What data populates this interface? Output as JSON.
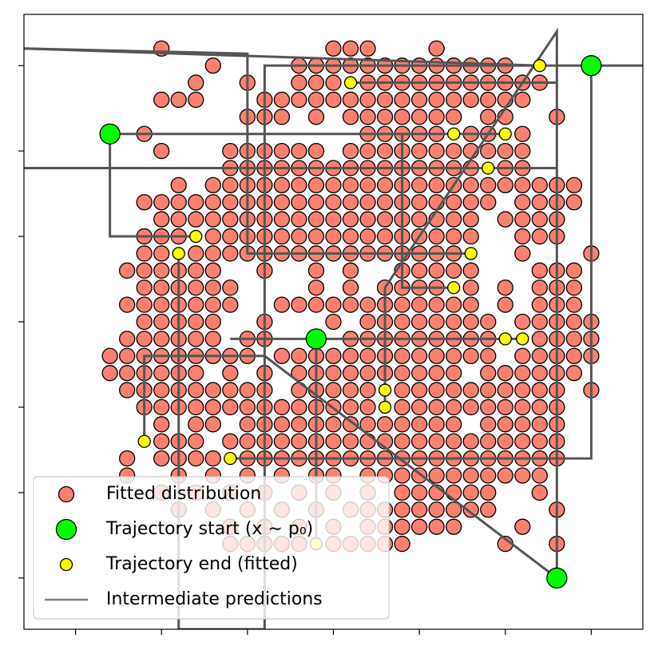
{
  "chart_data": {
    "type": "scatter",
    "xlim": [
      -18,
      18
    ],
    "ylim": [
      -18,
      18
    ],
    "xticks": [
      -15,
      -10,
      -5,
      0,
      5,
      10,
      15
    ],
    "yticks": [
      -15,
      -10,
      -5,
      0,
      5,
      10,
      15
    ],
    "legend": "lower left",
    "series": [
      {
        "name": "Fitted distribution",
        "color": "#fa8072",
        "x": [
          -10,
          0,
          1,
          2,
          6,
          -7,
          -2,
          -1,
          0,
          1,
          2,
          3,
          4,
          5,
          6,
          7,
          8,
          9,
          10,
          -8,
          -5,
          -2,
          -1,
          0,
          2,
          3,
          4,
          5,
          6,
          7,
          8,
          9,
          10,
          11,
          12,
          -10,
          -9,
          -8,
          -4,
          -3,
          -2,
          -1,
          0,
          1,
          2,
          3,
          4,
          5,
          6,
          7,
          8,
          9,
          10,
          11,
          -5,
          -4,
          -3,
          -1,
          1,
          2,
          3,
          4,
          5,
          6,
          7,
          9,
          10,
          13,
          -11,
          2,
          3,
          4,
          5,
          6,
          8,
          9,
          11,
          -10,
          -6,
          -5,
          -4,
          -3,
          -2,
          -1,
          1,
          2,
          3,
          4,
          5,
          6,
          7,
          8,
          9,
          10,
          11,
          -6,
          -5,
          -4,
          -3,
          -2,
          -1,
          0,
          1,
          2,
          3,
          4,
          5,
          6,
          7,
          8,
          10,
          11,
          -9,
          -7,
          -6,
          -5,
          -4,
          -3,
          -2,
          -1,
          0,
          1,
          2,
          3,
          4,
          5,
          6,
          7,
          8,
          9,
          10,
          11,
          12,
          13,
          14,
          -11,
          -10,
          -9,
          -8,
          -7,
          -6,
          -5,
          -4,
          -3,
          -2,
          -1,
          0,
          1,
          2,
          3,
          4,
          5,
          6,
          7,
          8,
          9,
          11,
          12,
          13,
          14,
          -10,
          -9,
          -8,
          -7,
          -6,
          -5,
          -4,
          -3,
          -2,
          -1,
          0,
          1,
          2,
          3,
          4,
          5,
          6,
          7,
          8,
          10,
          11,
          12,
          13,
          -11,
          -10,
          -9,
          -7,
          -6,
          -5,
          -4,
          -3,
          -2,
          -1,
          0,
          1,
          2,
          3,
          4,
          5,
          6,
          7,
          8,
          11,
          12,
          13,
          -11,
          -10,
          -8,
          -7,
          -6,
          -5,
          -4,
          -3,
          -2,
          -1,
          0,
          1,
          2,
          3,
          4,
          5,
          6,
          7,
          11,
          15,
          -12,
          -11,
          -10,
          -9,
          -8,
          -7,
          -4,
          -1,
          1,
          4,
          5,
          6,
          7,
          8,
          12,
          13,
          14,
          -11,
          -10,
          -9,
          -8,
          -7,
          -6,
          -1,
          1,
          3,
          4,
          5,
          6,
          8,
          10,
          12,
          13,
          14,
          -12,
          -11,
          -10,
          -9,
          -8,
          -7,
          -6,
          -3,
          -2,
          -1,
          0,
          1,
          2,
          3,
          4,
          5,
          6,
          7,
          8,
          10,
          12,
          13,
          14,
          -11,
          -10,
          -9,
          -8,
          -7,
          -4,
          0,
          2,
          3,
          4,
          5,
          6,
          7,
          8,
          9,
          11,
          12,
          13,
          14,
          15,
          -12,
          -11,
          -10,
          -9,
          -8,
          -7,
          -5,
          -4,
          1,
          2,
          3,
          4,
          5,
          6,
          7,
          8,
          9,
          12,
          13,
          14,
          15,
          -13,
          -12,
          -11,
          -10,
          -9,
          -8,
          -7,
          -6,
          -5,
          -3,
          -2,
          -1,
          0,
          1,
          2,
          3,
          4,
          5,
          6,
          7,
          8,
          9,
          11,
          12,
          13,
          14,
          15,
          -13,
          -12,
          -11,
          -10,
          -9,
          -8,
          -6,
          -4,
          -2,
          -1,
          0,
          1,
          2,
          3,
          4,
          5,
          6,
          7,
          9,
          10,
          11,
          12,
          13,
          14,
          -12,
          -11,
          -10,
          -9,
          -8,
          -7,
          -6,
          -5,
          -4,
          -2,
          -1,
          0,
          1,
          2,
          4,
          5,
          6,
          7,
          8,
          9,
          10,
          11,
          12,
          13,
          15,
          -11,
          -10,
          -9,
          -8,
          -7,
          -6,
          -5,
          -4,
          -3,
          -2,
          -1,
          0,
          1,
          2,
          4,
          5,
          6,
          7,
          8,
          9,
          10,
          11,
          12,
          13,
          -10,
          -8,
          -7,
          -5,
          -4,
          -3,
          -2,
          -1,
          0,
          1,
          2,
          3,
          4,
          5,
          6,
          7,
          9,
          10,
          11,
          12,
          13,
          -10,
          -9,
          -8,
          -6,
          -5,
          -4,
          -3,
          -2,
          -1,
          0,
          1,
          2,
          3,
          4,
          5,
          6,
          7,
          8,
          9,
          10,
          11,
          12,
          13,
          -12,
          -10,
          -9,
          -8,
          -7,
          -5,
          -4,
          -3,
          -2,
          -1,
          0,
          1,
          2,
          3,
          4,
          5,
          6,
          7,
          8,
          9,
          10,
          11,
          12,
          13,
          -12,
          -9,
          -7,
          -5,
          -3,
          -1,
          0,
          2,
          3,
          4,
          5,
          6,
          7,
          8,
          9,
          10,
          11,
          12,
          -10,
          -8,
          -6,
          -4,
          -2,
          0,
          2,
          4,
          5,
          6,
          7,
          8,
          9,
          12,
          -9,
          -7,
          -5,
          -3,
          -1,
          1,
          2,
          3,
          4,
          5,
          6,
          7,
          8,
          9,
          13,
          -6,
          -4,
          -2,
          0,
          2,
          3,
          4,
          5,
          6,
          7,
          11,
          -6,
          -5,
          -4,
          -3,
          -2,
          0,
          1,
          2,
          3,
          4,
          10,
          13
        ],
        "y": [
          16,
          16,
          16,
          16,
          16,
          15,
          15,
          15,
          15,
          15,
          15,
          15,
          15,
          15,
          15,
          15,
          15,
          15,
          15,
          14,
          14,
          14,
          14,
          14,
          14,
          14,
          14,
          14,
          14,
          14,
          14,
          14,
          14,
          14,
          14,
          13,
          13,
          13,
          13,
          13,
          13,
          13,
          13,
          13,
          13,
          13,
          13,
          13,
          13,
          13,
          13,
          13,
          13,
          13,
          12,
          12,
          12,
          12,
          12,
          12,
          12,
          12,
          12,
          12,
          12,
          12,
          12,
          12,
          11,
          11,
          11,
          11,
          11,
          11,
          11,
          11,
          11,
          10,
          10,
          10,
          10,
          10,
          10,
          10,
          10,
          10,
          10,
          10,
          10,
          10,
          10,
          10,
          10,
          10,
          10,
          9,
          9,
          9,
          9,
          9,
          9,
          9,
          9,
          9,
          9,
          9,
          9,
          9,
          9,
          9,
          9,
          9,
          8,
          8,
          8,
          8,
          8,
          8,
          8,
          8,
          8,
          8,
          8,
          8,
          8,
          8,
          8,
          8,
          8,
          8,
          8,
          8,
          8,
          8,
          8,
          7,
          7,
          7,
          7,
          7,
          7,
          7,
          7,
          7,
          7,
          7,
          7,
          7,
          7,
          7,
          7,
          7,
          7,
          7,
          7,
          7,
          7,
          7,
          7,
          7,
          6,
          6,
          6,
          6,
          6,
          6,
          6,
          6,
          6,
          6,
          6,
          6,
          6,
          6,
          6,
          6,
          6,
          6,
          6,
          6,
          6,
          6,
          6,
          5,
          5,
          5,
          5,
          5,
          5,
          5,
          5,
          5,
          5,
          5,
          5,
          5,
          5,
          5,
          5,
          5,
          5,
          5,
          5,
          5,
          5,
          4,
          4,
          4,
          4,
          4,
          4,
          4,
          4,
          4,
          4,
          4,
          4,
          4,
          4,
          4,
          4,
          4,
          4,
          4,
          4,
          3,
          3,
          3,
          3,
          3,
          3,
          3,
          3,
          3,
          3,
          3,
          3,
          3,
          3,
          3,
          3,
          3,
          2,
          2,
          2,
          2,
          2,
          2,
          2,
          2,
          2,
          2,
          2,
          2,
          2,
          2,
          2,
          2,
          2,
          1,
          1,
          1,
          1,
          1,
          1,
          1,
          1,
          1,
          1,
          1,
          1,
          1,
          1,
          1,
          1,
          1,
          1,
          1,
          1,
          1,
          1,
          1,
          0,
          0,
          0,
          0,
          0,
          0,
          0,
          0,
          0,
          0,
          0,
          0,
          0,
          0,
          0,
          0,
          0,
          0,
          0,
          0,
          -1,
          -1,
          -1,
          -1,
          -1,
          -1,
          -1,
          -1,
          -1,
          -1,
          -1,
          -1,
          -1,
          -1,
          -1,
          -1,
          -1,
          -1,
          -1,
          -1,
          -1,
          -2,
          -2,
          -2,
          -2,
          -2,
          -2,
          -2,
          -2,
          -2,
          -2,
          -2,
          -2,
          -2,
          -2,
          -2,
          -2,
          -2,
          -2,
          -2,
          -2,
          -2,
          -2,
          -2,
          -2,
          -2,
          -2,
          -2,
          -3,
          -3,
          -3,
          -3,
          -3,
          -3,
          -3,
          -3,
          -3,
          -3,
          -3,
          -3,
          -3,
          -3,
          -3,
          -3,
          -3,
          -3,
          -3,
          -3,
          -3,
          -3,
          -3,
          -3,
          -4,
          -4,
          -4,
          -4,
          -4,
          -4,
          -4,
          -4,
          -4,
          -4,
          -4,
          -4,
          -4,
          -4,
          -4,
          -4,
          -4,
          -4,
          -4,
          -4,
          -4,
          -4,
          -4,
          -4,
          -4,
          -5,
          -5,
          -5,
          -5,
          -5,
          -5,
          -5,
          -5,
          -5,
          -5,
          -5,
          -5,
          -5,
          -5,
          -5,
          -5,
          -5,
          -5,
          -5,
          -5,
          -5,
          -5,
          -5,
          -5,
          -6,
          -6,
          -6,
          -6,
          -6,
          -6,
          -6,
          -6,
          -6,
          -6,
          -6,
          -6,
          -6,
          -6,
          -6,
          -6,
          -6,
          -6,
          -6,
          -6,
          -6,
          -7,
          -7,
          -7,
          -7,
          -7,
          -7,
          -7,
          -7,
          -7,
          -7,
          -7,
          -7,
          -7,
          -7,
          -7,
          -7,
          -7,
          -7,
          -7,
          -7,
          -7,
          -7,
          -7,
          -8,
          -8,
          -8,
          -8,
          -8,
          -8,
          -8,
          -8,
          -8,
          -8,
          -8,
          -8,
          -8,
          -8,
          -8,
          -8,
          -8,
          -8,
          -8,
          -8,
          -8,
          -8,
          -8,
          -8,
          -9,
          -9,
          -9,
          -9,
          -9,
          -9,
          -9,
          -9,
          -9,
          -9,
          -9,
          -9,
          -9,
          -9,
          -9,
          -9,
          -9,
          -9,
          -10,
          -10,
          -10,
          -10,
          -10,
          -10,
          -10,
          -10,
          -10,
          -10,
          -10,
          -10,
          -10,
          -10,
          -11,
          -11,
          -11,
          -11,
          -11,
          -11,
          -11,
          -11,
          -11,
          -11,
          -11,
          -11,
          -11,
          -11,
          -11,
          -12,
          -12,
          -12,
          -12,
          -12,
          -12,
          -12,
          -12,
          -12,
          -12,
          -12,
          -13,
          -13,
          -13,
          -13,
          -13,
          -13,
          -13,
          -13,
          -13,
          -13,
          -13,
          -13
        ]
      },
      {
        "name": "Trajectory start (x ∼ p₀)",
        "color": "#00ff00",
        "x": [
          -13,
          15,
          -1,
          13
        ],
        "y": [
          11,
          15,
          -1,
          -15
        ]
      },
      {
        "name": "Trajectory end (fitted)",
        "color": "#ffff00",
        "x": [
          12,
          1,
          7,
          10,
          9,
          -8,
          -9,
          8,
          7,
          10,
          11,
          3,
          3,
          -11,
          -6,
          -1
        ],
        "y": [
          15,
          14,
          11,
          11,
          9,
          5,
          4,
          4,
          2,
          -1,
          -1,
          -4,
          -5,
          -7,
          -8,
          -13
        ]
      },
      {
        "name": "Intermediate predictions",
        "color": "#808080",
        "paths": [
          {
            "x": [
              -18,
              -5,
              -5,
              8
            ],
            "y": [
              16,
              15.7,
              4,
              4
            ]
          },
          {
            "x": [
              -18,
              12
            ],
            "y": [
              16,
              15
            ]
          },
          {
            "x": [
              -9,
              -9,
              -4,
              -4,
              15,
              18
            ],
            "y": [
              4,
              -18,
              -18,
              15,
              15,
              15
            ]
          },
          {
            "x": [
              10,
              -13,
              -13,
              -8
            ],
            "y": [
              11,
              11,
              5,
              5
            ]
          },
          {
            "x": [
              -18,
              13
            ],
            "y": [
              9,
              9
            ]
          },
          {
            "x": [
              13,
              13,
              3,
              3
            ],
            "y": [
              -15,
              17,
              2,
              -5
            ]
          },
          {
            "x": [
              -6,
              11
            ],
            "y": [
              -1,
              -1
            ]
          },
          {
            "x": [
              -1,
              -1
            ],
            "y": [
              -1,
              -13
            ]
          },
          {
            "x": [
              -11,
              -11,
              -4,
              13
            ],
            "y": [
              -7,
              -2,
              -2,
              -15
            ]
          },
          {
            "x": [
              -6,
              15,
              15
            ],
            "y": [
              -8,
              -8,
              15
            ]
          },
          {
            "x": [
              4,
              4,
              7
            ],
            "y": [
              11,
              2,
              2
            ]
          },
          {
            "x": [
              1,
              13
            ],
            "y": [
              14,
              14
            ]
          }
        ]
      }
    ]
  }
}
